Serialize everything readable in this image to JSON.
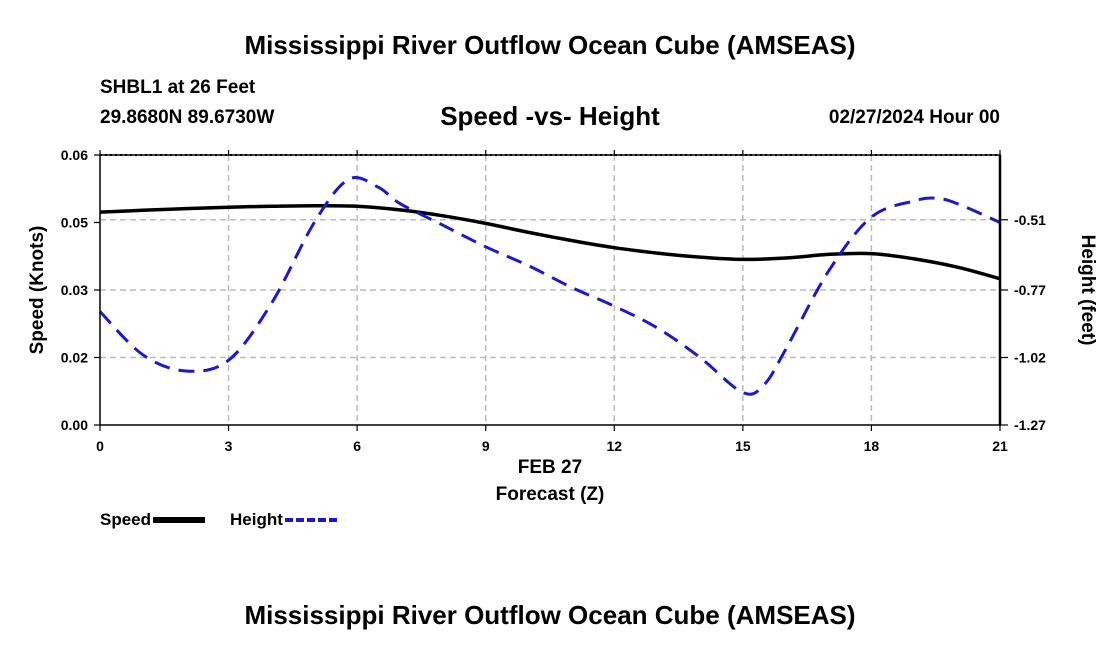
{
  "header": {
    "title": "Mississippi River Outflow Ocean Cube (AMSEAS)",
    "station": "SHBL1 at 26 Feet",
    "coords": "29.8680N  89.6730W",
    "subtitle": "Speed -vs- Height",
    "datetime": "02/27/2024 Hour 00"
  },
  "footer": {
    "title": "Mississippi River Outflow Ocean Cube (AMSEAS)"
  },
  "legend": {
    "speed_label": "Speed",
    "height_label": "Height"
  },
  "colors": {
    "speed": "#000000",
    "height": "#1a1acc",
    "grid": "#bbbbbb"
  },
  "chart_data": {
    "type": "line",
    "xlabel": "Forecast (Z)",
    "date_label": "FEB 27",
    "ylabel_left": "Speed (Knots)",
    "ylabel_right": "Height (feet)",
    "x_ticks": [
      0,
      3,
      6,
      9,
      12,
      15,
      18,
      21
    ],
    "x_tick_labels": [
      "0",
      "3",
      "6",
      "9",
      "12",
      "15",
      "18",
      "21"
    ],
    "y_left_ticks": [
      0.0,
      0.015,
      0.03,
      0.045,
      0.06
    ],
    "y_left_tick_labels": [
      "0.00",
      "0.02",
      "0.03",
      "0.05",
      "0.06"
    ],
    "y_right_ticks": [
      -1.27,
      -1.02,
      -0.77,
      -0.51
    ],
    "y_right_tick_labels": [
      "-1.27",
      "-1.02",
      "-0.77",
      "-0.51"
    ],
    "xlim": [
      0,
      21
    ],
    "ylim_left": [
      0,
      0.06
    ],
    "ylim_right": [
      -1.27,
      -0.27
    ],
    "series": [
      {
        "name": "Speed",
        "axis": "left",
        "style": "solid",
        "x": [
          0,
          1,
          2,
          3,
          4,
          5,
          6,
          7,
          8,
          9,
          10,
          11,
          12,
          13,
          14,
          15,
          16,
          17,
          18,
          19,
          20,
          21
        ],
        "y": [
          0.0473,
          0.0477,
          0.0481,
          0.0484,
          0.0486,
          0.0487,
          0.0486,
          0.0478,
          0.0465,
          0.0448,
          0.0428,
          0.041,
          0.0394,
          0.0382,
          0.0373,
          0.0368,
          0.0371,
          0.0379,
          0.0381,
          0.0369,
          0.0351,
          0.0325
        ]
      },
      {
        "name": "Height",
        "axis": "right",
        "style": "dashed",
        "x": [
          0,
          1,
          2,
          3,
          4,
          5,
          5.8,
          6.5,
          7,
          8,
          9,
          10,
          11,
          12,
          13,
          14,
          15,
          15.5,
          16,
          17,
          18,
          19,
          19.5,
          20,
          21
        ],
        "y": [
          -0.85,
          -1.01,
          -1.07,
          -1.03,
          -0.82,
          -0.52,
          -0.36,
          -0.39,
          -0.45,
          -0.53,
          -0.61,
          -0.68,
          -0.76,
          -0.83,
          -0.91,
          -1.02,
          -1.15,
          -1.12,
          -0.99,
          -0.7,
          -0.5,
          -0.44,
          -0.43,
          -0.45,
          -0.52
        ]
      }
    ]
  }
}
